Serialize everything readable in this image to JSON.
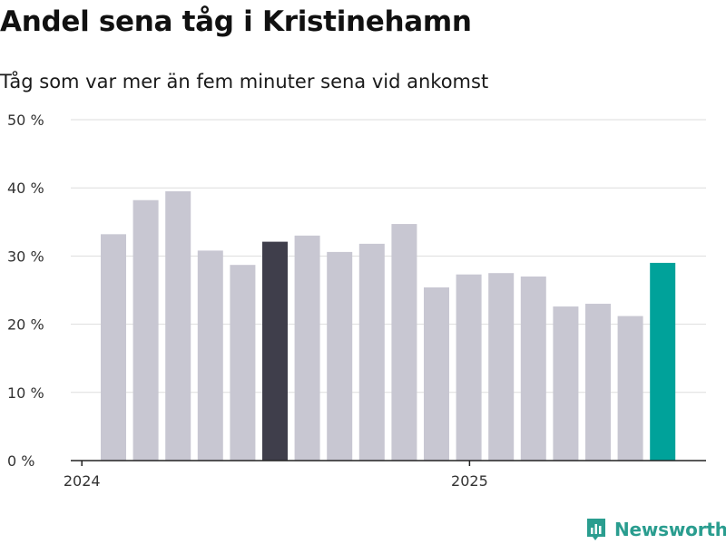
{
  "header": {
    "title": "Andel sena tåg i Kristinehamn",
    "subtitle": "Tåg som var mer än fem minuter sena vid ankomst"
  },
  "brand": {
    "name": "Newsworthy",
    "color": "#2a9d8f",
    "icon": "newsworthy-logo-icon"
  },
  "colors": {
    "default_bar": "#c8c7d2",
    "highlight_bar": "#3f3e4b",
    "latest_bar": "#00a29a",
    "grid": "#dddddd",
    "axis": "#222222"
  },
  "chart_data": {
    "type": "bar",
    "title": "Andel sena tåg i Kristinehamn",
    "subtitle": "Tåg som var mer än fem minuter sena vid ankomst",
    "ylim": [
      0,
      50
    ],
    "yticks": [
      0,
      10,
      20,
      30,
      40,
      50
    ],
    "ytick_labels": [
      "0 %",
      "10 %",
      "20 %",
      "30 %",
      "40 %",
      "50 %"
    ],
    "x_year_labels": [
      {
        "label": "2024",
        "at_bar": 0
      },
      {
        "label": "2025",
        "at_bar": 12
      }
    ],
    "grid": true,
    "values": [
      33.2,
      38.2,
      39.5,
      30.8,
      28.7,
      32.1,
      33.0,
      30.6,
      31.8,
      34.7,
      25.4,
      27.3,
      27.5,
      27.0,
      22.6,
      23.0,
      21.2,
      29.0
    ],
    "highlight_index": 5,
    "latest_index": 17
  }
}
